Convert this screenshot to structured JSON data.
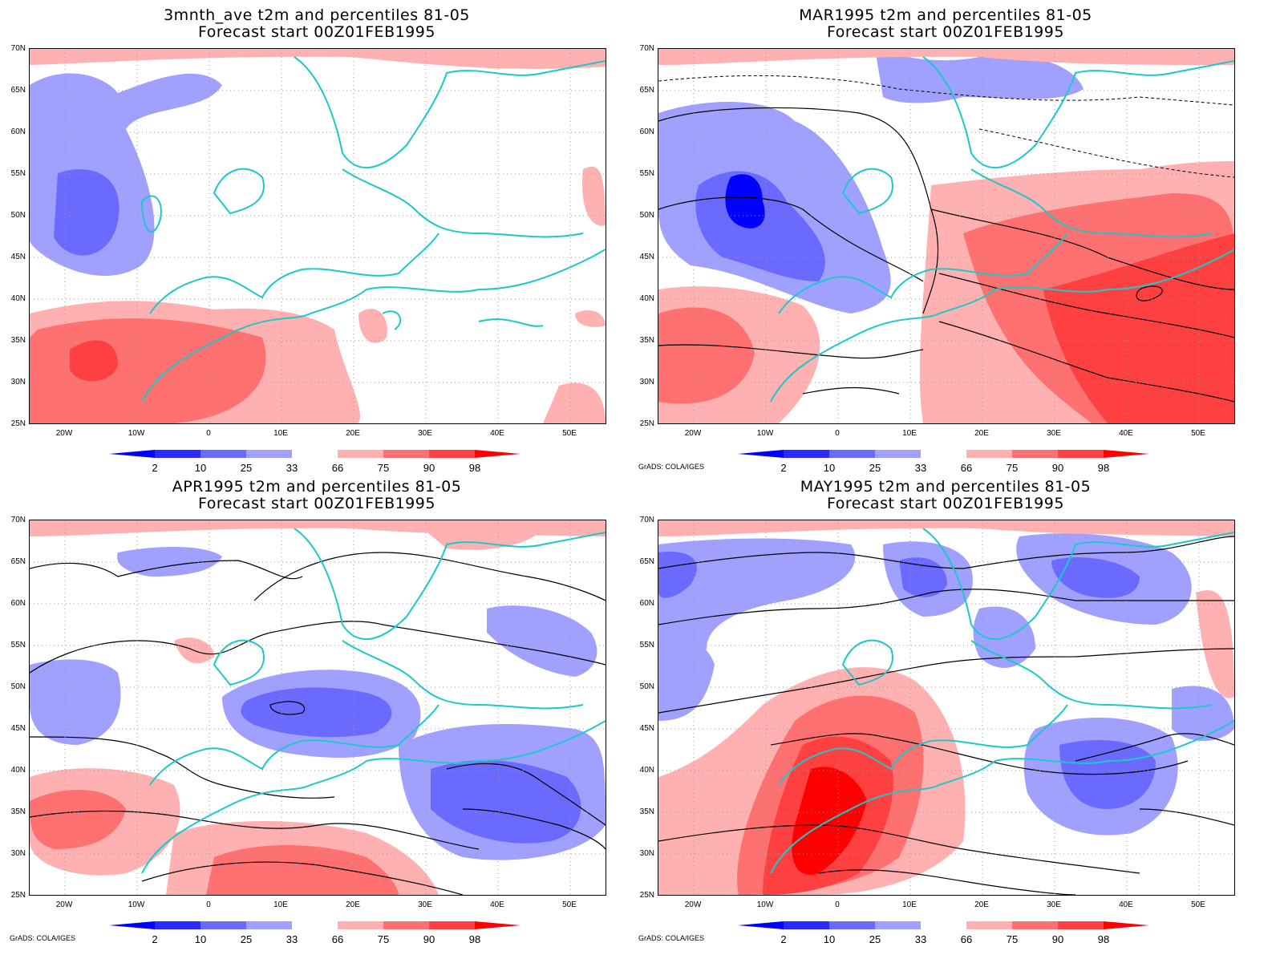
{
  "panels": [
    {
      "title": "3mnth_ave t2m and percentiles 81-05",
      "subtitle": "Forecast start 00Z01FEB1995",
      "credit": ""
    },
    {
      "title": "MAR1995 t2m and percentiles 81-05",
      "subtitle": "Forecast start 00Z01FEB1995",
      "credit": "GrADS: COLA/IGES"
    },
    {
      "title": "APR1995 t2m and percentiles 81-05",
      "subtitle": "Forecast start 00Z01FEB1995",
      "credit": "GrADS: COLA/IGES"
    },
    {
      "title": "MAY1995 t2m and percentiles 81-05",
      "subtitle": "Forecast start 00Z01FEB1995",
      "credit": "GrADS: COLA/IGES"
    }
  ],
  "map_axes": {
    "lat_labels": [
      "70N",
      "65N",
      "60N",
      "55N",
      "50N",
      "45N",
      "40N",
      "35N",
      "30N",
      "25N"
    ],
    "lon_labels": [
      "20W",
      "10W",
      "0",
      "10E",
      "20E",
      "30E",
      "40E",
      "50E"
    ]
  },
  "colorbar": {
    "labels": [
      "2",
      "10",
      "25",
      "33",
      "66",
      "75",
      "90",
      "98"
    ],
    "colors": [
      "#0000ff",
      "#2a2aff",
      "#6a6aff",
      "#a0a0ff",
      "#ffffff",
      "#ffb0b0",
      "#ff7070",
      "#ff4040",
      "#ff0000"
    ]
  }
}
